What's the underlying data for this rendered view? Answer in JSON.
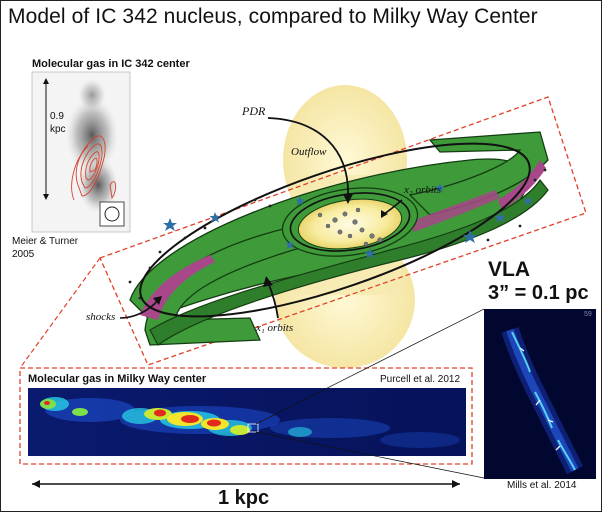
{
  "title": "Model of IC 342 nucleus, compared to Milky Way Center",
  "ic342_inset": {
    "title": "Molecular gas in IC 342 center",
    "scale_value": "0.9",
    "scale_unit": "kpc",
    "credit_line1": "Meier & Turner",
    "credit_line2": "2005"
  },
  "model": {
    "label_pdr": "PDR",
    "label_outflow": "Outflow",
    "label_x2": "x₂ orbits",
    "label_x1": "x₁ orbits",
    "label_shocks": "shocks"
  },
  "vla": {
    "name": "VLA",
    "resolution": "3” = 0.1 pc",
    "panel_number": "59",
    "credit": "Mills et al. 2014"
  },
  "milky_way_inset": {
    "title": "Molecular gas in Milky Way center",
    "credit": "Purcell et al. 2012",
    "scale": "1 kpc"
  },
  "colors": {
    "bar_green": "#3f9a3a",
    "bar_magenta": "#a8478a",
    "outflow_yellow": "#f6e8a4",
    "dashed_red": "#e0412b",
    "star_blue": "#2f6fa6"
  }
}
